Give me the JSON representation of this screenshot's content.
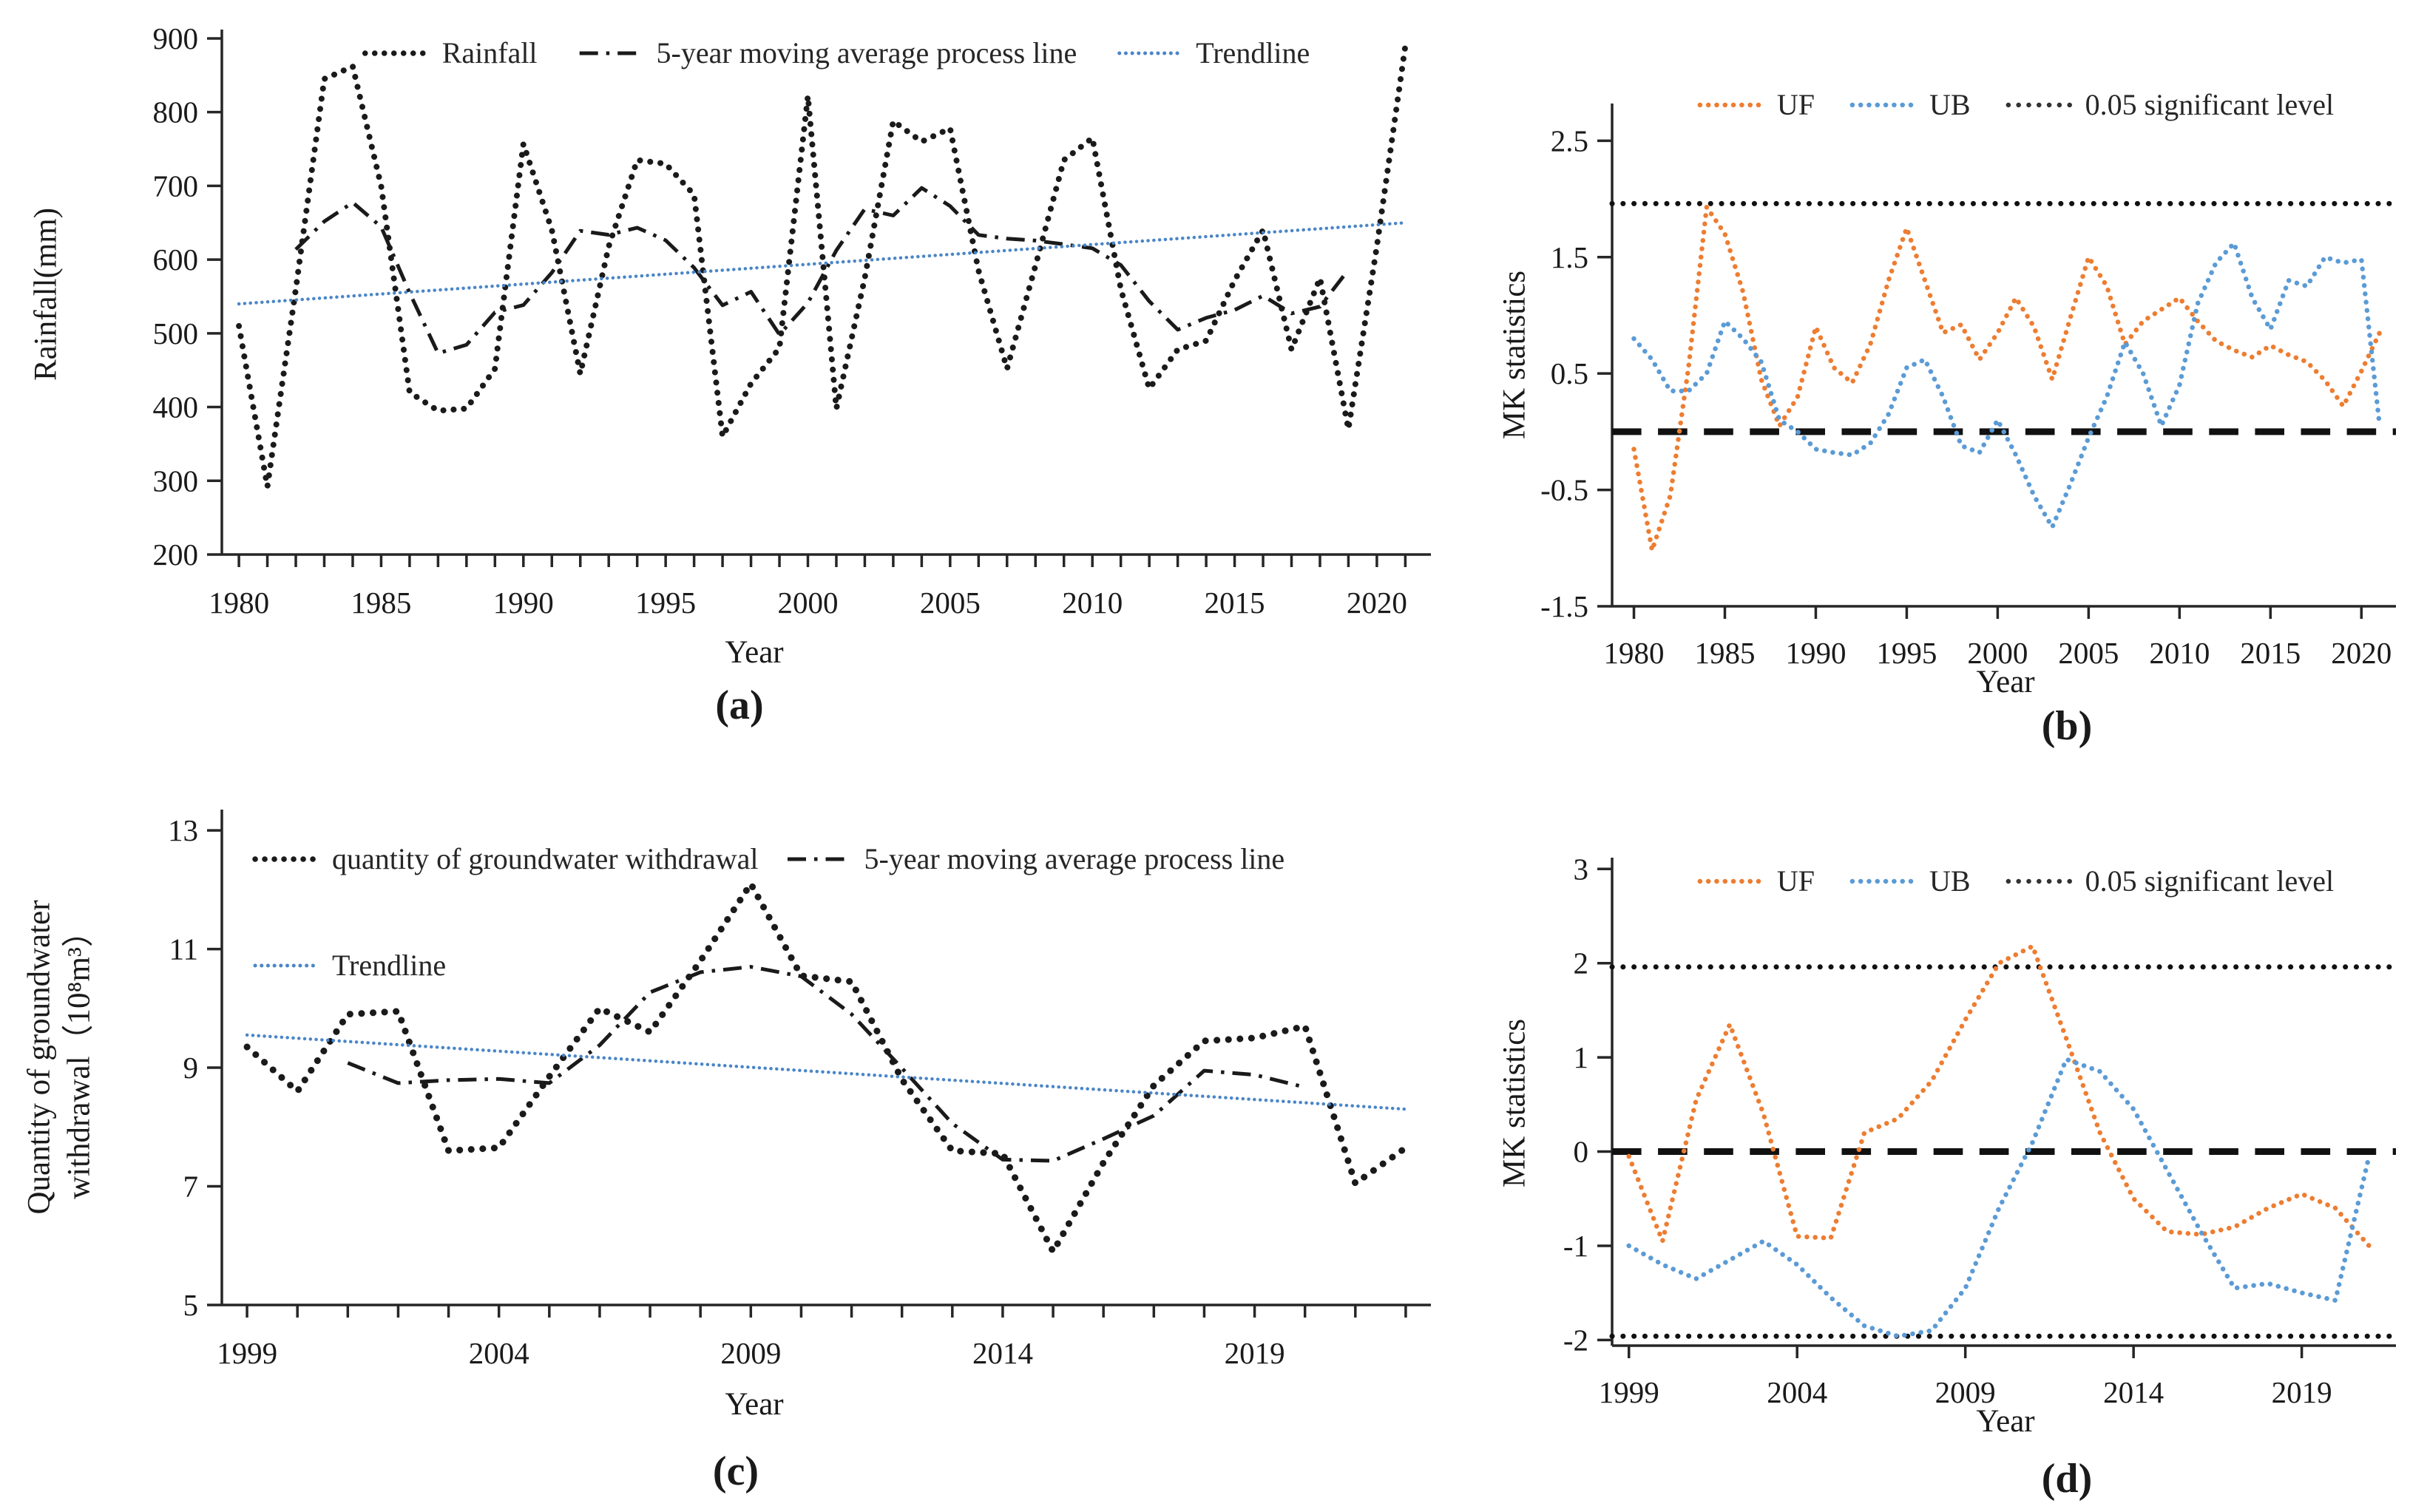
{
  "figure": {
    "background": "#ffffff"
  },
  "colors": {
    "black_series": "#1a1a1a",
    "uf_orange": "#ED7D31",
    "ub_blue": "#5B9BD5",
    "trend_blue": "#4a86c8",
    "axis": "#262626"
  },
  "chart_data": [
    {
      "id": "a",
      "type": "line",
      "caption": "(a)",
      "xlabel": "Year",
      "ylabel": "Rainfall(mm)",
      "xlim": [
        1979.4,
        2021.9
      ],
      "ylim": [
        200,
        912
      ],
      "y_ticks": [
        {
          "v": 900,
          "label": "900"
        },
        {
          "v": 800,
          "label": "800"
        },
        {
          "v": 700,
          "label": "700"
        },
        {
          "v": 600,
          "label": "600"
        },
        {
          "v": 500,
          "label": "500"
        },
        {
          "v": 400,
          "label": "400"
        },
        {
          "v": 300,
          "label": "300"
        },
        {
          "v": 200,
          "label": "200"
        }
      ],
      "x_ticks": {
        "from": 1980,
        "to": 2021,
        "step": 1
      },
      "x_label_ticks": {
        "from": 1980,
        "to": 2020,
        "step": 5
      },
      "ref_lines": [],
      "legend_rows": [
        [
          {
            "label": "Rainfall",
            "style": "dots",
            "color": "#1a1a1a",
            "width": 7.5
          },
          {
            "label": "5-year moving average process line",
            "style": "dashdot",
            "color": "#1a1a1a",
            "width": 5
          },
          {
            "label": "Trendline",
            "style": "fine-dots",
            "color": "#4a86c8",
            "width": 5
          }
        ]
      ],
      "series": [
        {
          "name": "Rainfall",
          "style": "dots",
          "color": "#1a1a1a",
          "width": 8,
          "x_start": 1980,
          "values": [
            510,
            292,
            560,
            845,
            862,
            700,
            420,
            395,
            398,
            452,
            757,
            640,
            445,
            618,
            735,
            730,
            688,
            360,
            432,
            480,
            822,
            398,
            575,
            788,
            760,
            778,
            585,
            452,
            592,
            735,
            765,
            560,
            425,
            478,
            490,
            572,
            640,
            478,
            575,
            370,
            618,
            890
          ]
        },
        {
          "name": "5-year moving average process line",
          "style": "dashdot",
          "color": "#1a1a1a",
          "width": 5,
          "x_start": 1982,
          "values": [
            613.8,
            651.8,
            677.4,
            644.4,
            555.0,
            473.0,
            484.4,
            528.4,
            538.4,
            582.4,
            639.0,
            633.6,
            643.2,
            626.2,
            589.0,
            538.0,
            556.4,
            498.4,
            541.4,
            612.6,
            668.6,
            659.8,
            697.2,
            672.6,
            633.4,
            628.4,
            625.8,
            620.8,
            615.4,
            592.6,
            543.6,
            505.0,
            521.0,
            531.6,
            551.0,
            527.0,
            536.2,
            586.2
          ]
        },
        {
          "name": "Trendline",
          "style": "fine-dots",
          "color": "#4a86c8",
          "width": 4.5,
          "points": [
            [
              1980,
              540
            ],
            [
              2021,
              650
            ]
          ]
        }
      ]
    },
    {
      "id": "b",
      "type": "line",
      "caption": "(b)",
      "xlabel": "Year",
      "ylabel": "MK statistics",
      "xlim": [
        1978.8,
        2021.9
      ],
      "ylim": [
        -1.5,
        2.82
      ],
      "y_ticks": [
        {
          "v": 2.5,
          "label": "2.5"
        },
        {
          "v": 1.5,
          "label": "1.5"
        },
        {
          "v": 0.5,
          "label": "0.5"
        },
        {
          "v": -0.5,
          "label": "-0.5"
        },
        {
          "v": -1.5,
          "label": "-1.5"
        }
      ],
      "x_ticks": {
        "from": 1980,
        "to": 2020,
        "step": 5
      },
      "x_label_ticks": {
        "from": 1980,
        "to": 2020,
        "step": 5
      },
      "ref_lines": [
        {
          "v": 1.96,
          "name": "0.05 significant level",
          "style": "sig-dots",
          "color": "#111111",
          "width": 7
        },
        {
          "v": 0,
          "name": "zero line",
          "style": "zero-dash",
          "color": "#111111",
          "width": 9
        }
      ],
      "legend_rows": [
        [
          {
            "label": "UF",
            "style": "dots",
            "color": "#ED7D31",
            "width": 6.5
          },
          {
            "label": "UB",
            "style": "dots",
            "color": "#5B9BD5",
            "width": 6.5
          },
          {
            "label": "0.05 significant level",
            "style": "sig-dots",
            "color": "#333333",
            "width": 6.5
          }
        ]
      ],
      "series": [
        {
          "name": "UF",
          "style": "dots",
          "color": "#ED7D31",
          "width": 6.5,
          "x_start": 1980,
          "values": [
            -0.15,
            -1.02,
            -0.55,
            0.55,
            1.93,
            1.7,
            1.2,
            0.45,
            0.05,
            0.3,
            0.9,
            0.55,
            0.42,
            0.75,
            1.3,
            1.75,
            1.3,
            0.85,
            0.92,
            0.62,
            0.85,
            1.15,
            0.9,
            0.45,
            0.98,
            1.5,
            1.25,
            0.75,
            0.95,
            1.05,
            1.15,
            0.95,
            0.78,
            0.7,
            0.64,
            0.74,
            0.66,
            0.6,
            0.44,
            0.22,
            0.52,
            0.85
          ]
        },
        {
          "name": "UB",
          "style": "dots",
          "color": "#5B9BD5",
          "width": 6.5,
          "x_start": 1980,
          "values": [
            0.8,
            0.62,
            0.35,
            0.35,
            0.5,
            0.95,
            0.8,
            0.6,
            0.1,
            0.0,
            -0.15,
            -0.18,
            -0.2,
            -0.1,
            0.15,
            0.55,
            0.62,
            0.3,
            -0.12,
            -0.18,
            0.1,
            -0.2,
            -0.55,
            -0.82,
            -0.45,
            -0.05,
            0.3,
            0.77,
            0.5,
            0.05,
            0.4,
            1.1,
            1.45,
            1.62,
            1.15,
            0.88,
            1.3,
            1.25,
            1.5,
            1.45,
            1.48,
            0.05
          ]
        }
      ]
    },
    {
      "id": "c",
      "type": "line",
      "caption": "(c)",
      "xlabel": "Year",
      "ylabel": "Quantity of groundwater\nwithdrawal（10⁸m³）",
      "xlim": [
        1998.5,
        2022.5
      ],
      "ylim": [
        5,
        13.35
      ],
      "y_ticks": [
        {
          "v": 13,
          "label": "13"
        },
        {
          "v": 11,
          "label": "11"
        },
        {
          "v": 9,
          "label": "9"
        },
        {
          "v": 7,
          "label": "7"
        },
        {
          "v": 5,
          "label": "5"
        }
      ],
      "x_ticks": {
        "from": 1999,
        "to": 2022,
        "step": 1
      },
      "x_label_ticks": {
        "from": 1999,
        "to": 2019,
        "step": 5
      },
      "ref_lines": [],
      "legend_rows": [
        [
          {
            "label": "quantity of groundwater withdrawal",
            "style": "dots",
            "color": "#1a1a1a",
            "width": 7.5
          },
          {
            "label": "5-year moving average process line",
            "style": "dashdot",
            "color": "#1a1a1a",
            "width": 5
          }
        ],
        [
          {
            "label": "Trendline",
            "style": "fine-dots",
            "color": "#4a86c8",
            "width": 5
          }
        ]
      ],
      "series": [
        {
          "name": "quantity of groundwater withdrawal",
          "style": "dots",
          "color": "#1a1a1a",
          "width": 9,
          "x_start": 1999,
          "values": [
            9.35,
            8.6,
            9.9,
            9.95,
            7.6,
            7.65,
            8.85,
            10.0,
            9.6,
            10.8,
            12.1,
            10.55,
            10.45,
            8.8,
            7.6,
            7.55,
            5.9,
            7.4,
            8.7,
            9.45,
            9.5,
            9.7,
            7.05,
            7.65
          ]
        },
        {
          "name": "5-year moving average process line",
          "style": "dashdot",
          "color": "#1a1a1a",
          "width": 5,
          "x_start": 2001,
          "values": [
            9.08,
            8.74,
            8.79,
            8.81,
            8.74,
            9.38,
            10.27,
            10.61,
            10.7,
            10.54,
            9.9,
            8.99,
            8.06,
            7.45,
            7.43,
            7.8,
            8.19,
            8.95,
            8.88,
            8.67
          ]
        },
        {
          "name": "Trendline",
          "style": "fine-dots",
          "color": "#4a86c8",
          "width": 4.5,
          "points": [
            [
              1999,
              9.55
            ],
            [
              2022,
              8.3
            ]
          ]
        }
      ]
    },
    {
      "id": "d",
      "type": "line",
      "caption": "(d)",
      "xlabel": "Year",
      "ylabel": "MK statistics",
      "xlim": [
        1998.5,
        2021.8
      ],
      "ylim": [
        -2.06,
        3.12
      ],
      "y_ticks": [
        {
          "v": 3,
          "label": "3"
        },
        {
          "v": 2,
          "label": "2"
        },
        {
          "v": 1,
          "label": "1"
        },
        {
          "v": 0,
          "label": "0"
        },
        {
          "v": -1,
          "label": "-1"
        },
        {
          "v": -2,
          "label": "-2"
        }
      ],
      "x_ticks": {
        "from": 1999,
        "to": 2019,
        "step": 5
      },
      "x_label_ticks": {
        "from": 1999,
        "to": 2019,
        "step": 5
      },
      "ref_lines": [
        {
          "v": 1.96,
          "name": "0.05 significant level",
          "style": "sig-dots",
          "color": "#111111",
          "width": 7
        },
        {
          "v": -1.96,
          "name": "0.05 significant level",
          "style": "sig-dots",
          "color": "#111111",
          "width": 7
        },
        {
          "v": 0,
          "name": "zero line",
          "style": "zero-dash",
          "color": "#111111",
          "width": 9
        }
      ],
      "legend_rows": [
        [
          {
            "label": "UF",
            "style": "dots",
            "color": "#ED7D31",
            "width": 6.5
          },
          {
            "label": "UB",
            "style": "dots",
            "color": "#5B9BD5",
            "width": 6.5
          },
          {
            "label": "0.05 significant level",
            "style": "sig-dots",
            "color": "#333333",
            "width": 6.5
          }
        ]
      ],
      "series": [
        {
          "name": "UF",
          "style": "dots",
          "color": "#ED7D31",
          "width": 6.5,
          "x_start": 1999,
          "values": [
            -0.05,
            -0.95,
            0.55,
            1.35,
            0.4,
            -0.9,
            -0.92,
            0.2,
            0.35,
            0.75,
            1.4,
            2.0,
            2.18,
            1.2,
            0.2,
            -0.5,
            -0.85,
            -0.88,
            -0.8,
            -0.6,
            -0.45,
            -0.6,
            -1.0
          ]
        },
        {
          "name": "UB",
          "style": "dots",
          "color": "#5B9BD5",
          "width": 6.5,
          "x_start": 1999,
          "values": [
            -1.0,
            -1.2,
            -1.35,
            -1.15,
            -0.95,
            -1.2,
            -1.55,
            -1.85,
            -1.96,
            -1.9,
            -1.45,
            -0.6,
            0.1,
            0.98,
            0.85,
            0.45,
            -0.2,
            -0.85,
            -1.45,
            -1.4,
            -1.5,
            -1.58,
            -0.05
          ]
        }
      ]
    }
  ]
}
